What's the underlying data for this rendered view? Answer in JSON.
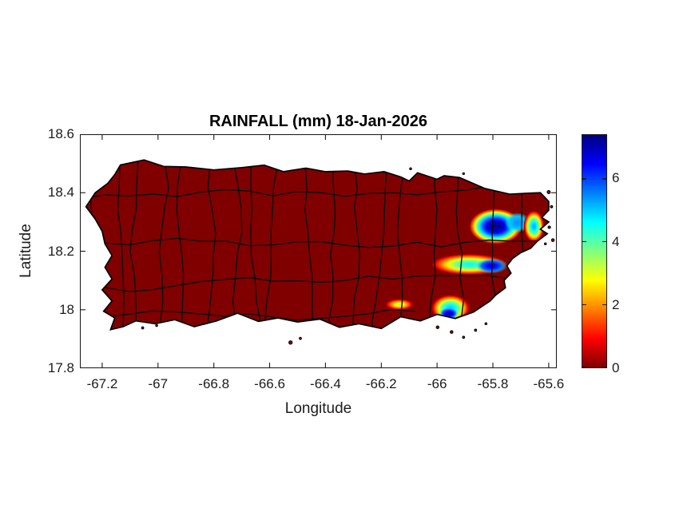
{
  "figure": {
    "title": "RAINFALL (mm) 18-Jan-2026",
    "background": "#ffffff"
  },
  "axes": {
    "xlabel": "Longitude",
    "ylabel": "Latitude",
    "xlim": [
      -67.28,
      -65.571
    ],
    "ylim": [
      17.8,
      18.6
    ],
    "xticks": [
      {
        "v": -67.2,
        "label": "-67.2"
      },
      {
        "v": -67.0,
        "label": "-67"
      },
      {
        "v": -66.8,
        "label": "-66.8"
      },
      {
        "v": -66.6,
        "label": "-66.6"
      },
      {
        "v": -66.4,
        "label": "-66.4"
      },
      {
        "v": -66.2,
        "label": "-66.2"
      },
      {
        "v": -66.0,
        "label": "-66"
      },
      {
        "v": -65.8,
        "label": "-65.8"
      },
      {
        "v": -65.6,
        "label": "-65.6"
      }
    ],
    "yticks": [
      {
        "v": 18.6,
        "label": "18.6"
      },
      {
        "v": 18.4,
        "label": "18.4"
      },
      {
        "v": 18.2,
        "label": "18.2"
      },
      {
        "v": 18.0,
        "label": "18"
      },
      {
        "v": 17.8,
        "label": "17.8"
      }
    ],
    "axis_color": "#1a1a1a",
    "label_color": "#1c1c1c"
  },
  "colorbar": {
    "min": 0,
    "max": 7.4,
    "ticks": [
      {
        "v": 0,
        "label": "0"
      },
      {
        "v": 2,
        "label": "2"
      },
      {
        "v": 4,
        "label": "4"
      },
      {
        "v": 6,
        "label": "6"
      }
    ],
    "colormap": "jet reversed (0 = dark red, max = dark blue)"
  },
  "chart_data": {
    "type": "heatmap",
    "title": "RAINFALL (mm) 18-Jan-2026",
    "region": "Puerto Rico with municipal boundaries",
    "units": "mm",
    "xlabel": "Longitude",
    "ylabel": "Latitude",
    "xlim": [
      -67.28,
      -65.571
    ],
    "ylim": [
      17.8,
      18.6
    ],
    "background_rain_mm": 0,
    "no_rain_color": "#800000",
    "boundary_color": "#0d0d0d",
    "rain_cells": [
      {
        "area": "northeast / El Yunque - Rio Grande",
        "lon": -65.79,
        "lat": 18.285,
        "rx_deg": 0.094,
        "ry_deg": 0.06,
        "peak_mm": 7.3,
        "falloff": 2.2,
        "kind": "full"
      },
      {
        "area": "northeast lobe toward Luquillo",
        "lon": -65.712,
        "lat": 18.298,
        "rx_deg": 0.046,
        "ry_deg": 0.034,
        "peak_mm": 5.4,
        "edge_mm": 4.6,
        "falloff": 1.6,
        "kind": "core"
      },
      {
        "area": "east band Las Piedras - Humacao",
        "lon": -65.885,
        "lat": 18.155,
        "rx_deg": 0.135,
        "ry_deg": 0.036,
        "peak_mm": 4.6,
        "falloff": 1.6,
        "kind": "full"
      },
      {
        "area": "east band core near Humacao",
        "lon": -65.805,
        "lat": 18.15,
        "rx_deg": 0.058,
        "ry_deg": 0.026,
        "peak_mm": 6.6,
        "edge_mm": 4.4,
        "falloff": 1.8,
        "kind": "core"
      },
      {
        "area": "south spot near Santa Isabel",
        "lon": -66.135,
        "lat": 18.018,
        "rx_deg": 0.05,
        "ry_deg": 0.019,
        "peak_mm": 3.2,
        "falloff": 1.6,
        "kind": "full"
      },
      {
        "area": "southeast coast Patillas - Maunabo",
        "lon": -65.952,
        "lat": 18.005,
        "rx_deg": 0.068,
        "ry_deg": 0.046,
        "peak_mm": 5.0,
        "falloff": 1.8,
        "kind": "full"
      },
      {
        "area": "southeast coastal core",
        "lon": -65.958,
        "lat": 17.987,
        "rx_deg": 0.036,
        "ry_deg": 0.022,
        "peak_mm": 7.0,
        "edge_mm": 4.2,
        "falloff": 1.8,
        "kind": "core"
      },
      {
        "area": "Fajardo - Ceiba patch",
        "lon": -65.653,
        "lat": 18.285,
        "rx_deg": 0.036,
        "ry_deg": 0.054,
        "peak_mm": 5.2,
        "falloff": 1.8,
        "kind": "full"
      }
    ],
    "coastline": [
      [
        -67.155,
        18.462
      ],
      [
        -67.135,
        18.495
      ],
      [
        -67.05,
        18.512
      ],
      [
        -66.98,
        18.49
      ],
      [
        -66.9,
        18.488
      ],
      [
        -66.8,
        18.478
      ],
      [
        -66.7,
        18.486
      ],
      [
        -66.62,
        18.494
      ],
      [
        -66.55,
        18.472
      ],
      [
        -66.47,
        18.484
      ],
      [
        -66.4,
        18.472
      ],
      [
        -66.32,
        18.474
      ],
      [
        -66.26,
        18.464
      ],
      [
        -66.19,
        18.472
      ],
      [
        -66.13,
        18.454
      ],
      [
        -66.1,
        18.44
      ],
      [
        -66.07,
        18.468
      ],
      [
        -66.0,
        18.446
      ],
      [
        -65.975,
        18.458
      ],
      [
        -65.92,
        18.452
      ],
      [
        -65.83,
        18.415
      ],
      [
        -65.74,
        18.395
      ],
      [
        -65.68,
        18.398
      ],
      [
        -65.63,
        18.4
      ],
      [
        -65.6,
        18.37
      ],
      [
        -65.6,
        18.34
      ],
      [
        -65.625,
        18.315
      ],
      [
        -65.6,
        18.3
      ],
      [
        -65.63,
        18.275
      ],
      [
        -65.605,
        18.26
      ],
      [
        -65.64,
        18.235
      ],
      [
        -65.665,
        18.21
      ],
      [
        -65.7,
        18.195
      ],
      [
        -65.73,
        18.175
      ],
      [
        -65.75,
        18.15
      ],
      [
        -65.735,
        18.125
      ],
      [
        -65.76,
        18.1
      ],
      [
        -65.755,
        18.075
      ],
      [
        -65.79,
        18.05
      ],
      [
        -65.81,
        18.03
      ],
      [
        -65.87,
        17.992
      ],
      [
        -65.935,
        17.97
      ],
      [
        -66.0,
        17.984
      ],
      [
        -66.06,
        17.962
      ],
      [
        -66.13,
        17.976
      ],
      [
        -66.2,
        17.936
      ],
      [
        -66.28,
        17.952
      ],
      [
        -66.35,
        17.94
      ],
      [
        -66.42,
        17.968
      ],
      [
        -66.5,
        17.958
      ],
      [
        -66.57,
        17.972
      ],
      [
        -66.64,
        17.96
      ],
      [
        -66.715,
        17.988
      ],
      [
        -66.79,
        17.962
      ],
      [
        -66.87,
        17.942
      ],
      [
        -66.94,
        17.966
      ],
      [
        -67.01,
        17.952
      ],
      [
        -67.08,
        17.962
      ],
      [
        -67.125,
        17.942
      ],
      [
        -67.17,
        17.932
      ],
      [
        -67.155,
        17.972
      ],
      [
        -67.195,
        17.995
      ],
      [
        -67.165,
        18.03
      ],
      [
        -67.2,
        18.068
      ],
      [
        -67.165,
        18.105
      ],
      [
        -67.19,
        18.145
      ],
      [
        -67.165,
        18.185
      ],
      [
        -67.19,
        18.225
      ],
      [
        -67.2,
        18.268
      ],
      [
        -67.225,
        18.31
      ],
      [
        -67.258,
        18.352
      ],
      [
        -67.225,
        18.4
      ],
      [
        -67.18,
        18.432
      ]
    ],
    "islets": [
      [
        -66.525,
        17.888,
        2.2
      ],
      [
        -66.49,
        17.902,
        1.4
      ],
      [
        -67.055,
        17.938,
        1.4
      ],
      [
        -67.005,
        17.946,
        1.3
      ],
      [
        -65.998,
        17.94,
        1.8
      ],
      [
        -65.948,
        17.924,
        1.8
      ],
      [
        -65.905,
        17.906,
        1.4
      ],
      [
        -65.862,
        17.93,
        1.4
      ],
      [
        -65.825,
        17.952,
        1.3
      ],
      [
        -65.6,
        18.402,
        2.0
      ],
      [
        -65.59,
        18.352,
        1.5
      ],
      [
        -65.598,
        18.282,
        1.6
      ],
      [
        -65.585,
        18.238,
        1.8
      ],
      [
        -65.612,
        18.225,
        1.3
      ],
      [
        -66.095,
        18.482,
        1.3
      ],
      [
        -65.905,
        18.465,
        1.2
      ]
    ]
  }
}
